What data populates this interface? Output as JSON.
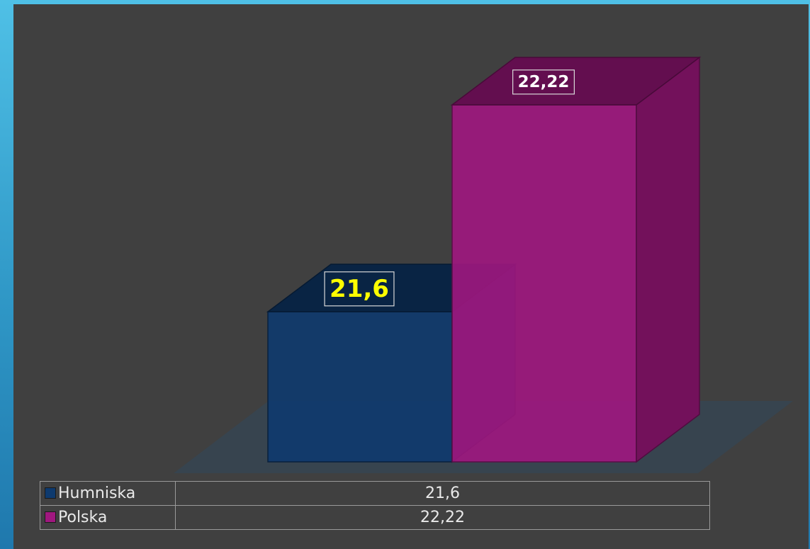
{
  "chart_data": {
    "type": "bar",
    "title": "",
    "xlabel": "",
    "ylabel": "",
    "style": "3d-column",
    "grid": false,
    "legend": "data-table-bottom",
    "series": [
      {
        "name": "Humniska",
        "values": [
          21.6
        ],
        "label": "21,6",
        "color": "#0e3a6e",
        "label_color": "#ffff00"
      },
      {
        "name": "Polska",
        "values": [
          22.22
        ],
        "label": "22,22",
        "color": "#a0177f",
        "label_color": "#ffffff"
      }
    ],
    "table": [
      {
        "series": "Humniska",
        "value": "21,6"
      },
      {
        "series": "Polska",
        "value": "22,22"
      }
    ]
  }
}
